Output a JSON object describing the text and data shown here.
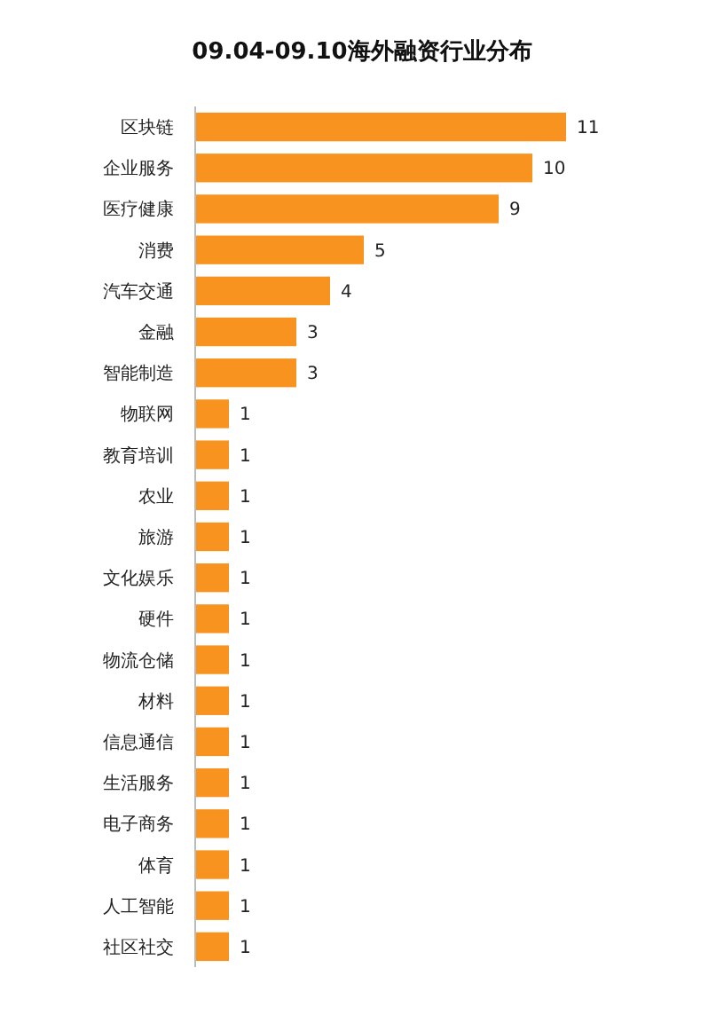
{
  "chart_data": {
    "type": "bar",
    "orientation": "horizontal",
    "title": "09.04-09.10海外融资行业分布",
    "categories": [
      "区块链",
      "企业服务",
      "医疗健康",
      "消费",
      "汽车交通",
      "金融",
      "智能制造",
      "物联网",
      "教育培训",
      "农业",
      "旅游",
      "文化娱乐",
      "硬件",
      "物流仓储",
      "材料",
      "信息通信",
      "生活服务",
      "电子商务",
      "体育",
      "人工智能",
      "社区社交"
    ],
    "values": [
      11,
      10,
      9,
      5,
      4,
      3,
      3,
      1,
      1,
      1,
      1,
      1,
      1,
      1,
      1,
      1,
      1,
      1,
      1,
      1,
      1
    ],
    "color": "#f7931e",
    "data_labels": true
  }
}
